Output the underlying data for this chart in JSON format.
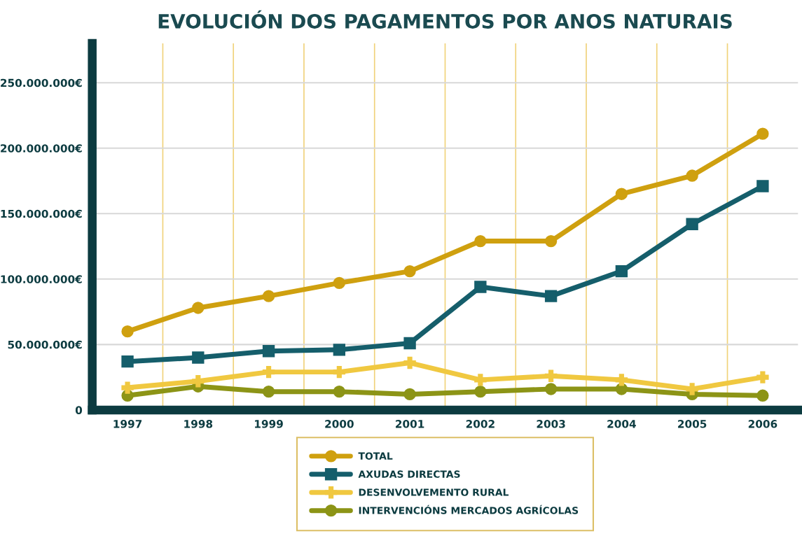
{
  "chart_data": {
    "type": "line",
    "title": "EVOLUCIÓN DOS PAGAMENTOS POR ANOS NATURAIS",
    "categories": [
      "1997",
      "1998",
      "1999",
      "2000",
      "2001",
      "2002",
      "2003",
      "2004",
      "2005",
      "2006"
    ],
    "series": [
      {
        "name": "TOTAL",
        "color": "#cfa00f",
        "marker": "circle",
        "values": [
          60000000,
          78000000,
          87000000,
          97000000,
          106000000,
          129000000,
          129000000,
          165000000,
          179000000,
          211000000
        ]
      },
      {
        "name": "AXUDAS DIRECTAS",
        "color": "#155e6b",
        "marker": "square",
        "values": [
          37000000,
          40000000,
          45000000,
          46000000,
          51000000,
          94000000,
          87000000,
          106000000,
          142000000,
          171000000
        ]
      },
      {
        "name": "DESENVOLVEMENTO RURAL",
        "color": "#f0c840",
        "marker": "cross",
        "values": [
          17000000,
          22000000,
          29000000,
          29000000,
          36000000,
          23000000,
          26000000,
          23000000,
          16000000,
          25000000
        ]
      },
      {
        "name": "INTERVENCIÓNS MERCADOS AGRÍCOLAS",
        "color": "#8c9416",
        "marker": "circle",
        "values": [
          11000000,
          18000000,
          14000000,
          14000000,
          12000000,
          14000000,
          16000000,
          16000000,
          12000000,
          11000000
        ]
      }
    ],
    "ylim": [
      0,
      280000000
    ],
    "yticks": [
      0,
      {
        "value": 50000000,
        "label": "50.000.000€"
      },
      {
        "value": 100000000,
        "label": "100.000.000€"
      },
      {
        "value": 150000000,
        "label": "150.000.000€"
      },
      {
        "value": 200000000,
        "label": "200.000.000€"
      },
      {
        "value": 250000000,
        "label": "250.000.000€"
      }
    ],
    "grid": true,
    "legend": "bottom",
    "line_style": "solid"
  }
}
